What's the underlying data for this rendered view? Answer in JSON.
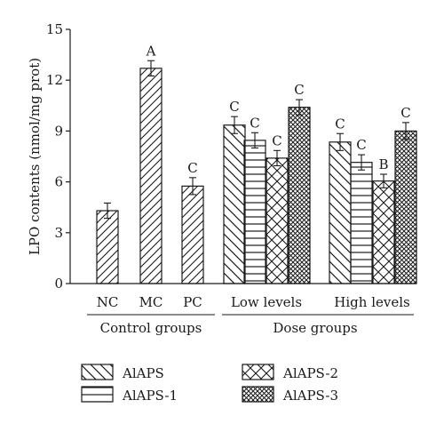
{
  "chart_data": {
    "type": "bar",
    "ylabel": "LPO contents (nmol/mg prot)",
    "ylim": [
      0,
      15
    ],
    "yticks": [
      0,
      3,
      6,
      9,
      12,
      15
    ],
    "grid": false,
    "legend_position": "bottom",
    "groups": [
      {
        "label": "Control groups",
        "bars": [
          {
            "label": "NC",
            "value": 4.3,
            "error": 0.45,
            "letter": "",
            "pattern": "diag-up"
          },
          {
            "label": "MC",
            "value": 12.7,
            "error": 0.45,
            "letter": "A",
            "pattern": "diag-up"
          },
          {
            "label": "PC",
            "value": 5.75,
            "error": 0.5,
            "letter": "C",
            "pattern": "diag-up"
          }
        ]
      },
      {
        "label": "Dose groups",
        "subgroups": [
          {
            "label": "Low levels",
            "bars": [
              {
                "series": "AlAPS",
                "value": 9.35,
                "error": 0.5,
                "letter": "C"
              },
              {
                "series": "AlAPS-1",
                "value": 8.45,
                "error": 0.45,
                "letter": "C"
              },
              {
                "series": "AlAPS-2",
                "value": 7.4,
                "error": 0.45,
                "letter": "C"
              },
              {
                "series": "AlAPS-3",
                "value": 10.4,
                "error": 0.45,
                "letter": "C"
              }
            ]
          },
          {
            "label": "High levels",
            "bars": [
              {
                "series": "AlAPS",
                "value": 8.35,
                "error": 0.5,
                "letter": "C"
              },
              {
                "series": "AlAPS-1",
                "value": 7.15,
                "error": 0.45,
                "letter": "C"
              },
              {
                "series": "AlAPS-2",
                "value": 6.05,
                "error": 0.4,
                "letter": "B"
              },
              {
                "series": "AlAPS-3",
                "value": 9.0,
                "error": 0.5,
                "letter": "C"
              }
            ]
          }
        ]
      }
    ],
    "series": [
      {
        "name": "AlAPS",
        "pattern": "diag-down"
      },
      {
        "name": "AlAPS-1",
        "pattern": "horizontal"
      },
      {
        "name": "AlAPS-2",
        "pattern": "cross-diag"
      },
      {
        "name": "AlAPS-3",
        "pattern": "dense-cross"
      }
    ]
  }
}
